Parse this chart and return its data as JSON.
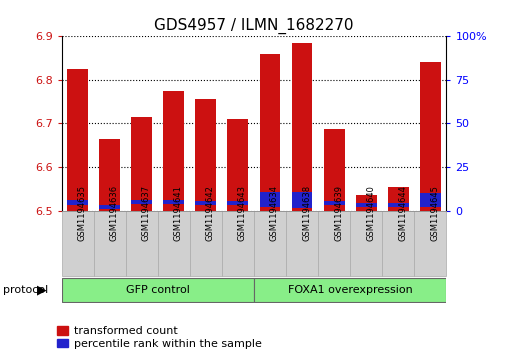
{
  "title": "GDS4957 / ILMN_1682270",
  "samples": [
    "GSM1194635",
    "GSM1194636",
    "GSM1194637",
    "GSM1194641",
    "GSM1194642",
    "GSM1194643",
    "GSM1194634",
    "GSM1194638",
    "GSM1194639",
    "GSM1194640",
    "GSM1194644",
    "GSM1194645"
  ],
  "transformed_counts": [
    6.825,
    6.665,
    6.715,
    6.775,
    6.755,
    6.71,
    6.86,
    6.885,
    6.688,
    6.535,
    6.555,
    6.84
  ],
  "percentile_bottoms": [
    6.513,
    6.504,
    6.514,
    6.514,
    6.512,
    6.513,
    6.507,
    6.506,
    6.512,
    6.509,
    6.509,
    6.507
  ],
  "percentile_heights": [
    0.011,
    0.009,
    0.011,
    0.011,
    0.01,
    0.01,
    0.036,
    0.036,
    0.011,
    0.009,
    0.009,
    0.034
  ],
  "ymin": 6.5,
  "ymax": 6.9,
  "yticks": [
    6.5,
    6.6,
    6.7,
    6.8,
    6.9
  ],
  "y2min": 0,
  "y2max": 100,
  "y2ticks": [
    0,
    25,
    50,
    75,
    100
  ],
  "y2ticklabels": [
    "0",
    "25",
    "50",
    "75",
    "100%"
  ],
  "bar_color_red": "#cc1111",
  "bar_color_blue": "#2222cc",
  "bar_width": 0.65,
  "group1_label": "GFP control",
  "group2_label": "FOXA1 overexpression",
  "group1_count": 6,
  "group2_count": 6,
  "group_color": "#88ee88",
  "sample_box_color": "#d0d0d0",
  "protocol_label": "protocol",
  "legend_red": "transformed count",
  "legend_blue": "percentile rank within the sample",
  "plot_bg": "#ffffff",
  "title_fontsize": 11,
  "tick_fontsize": 8,
  "sample_fontsize": 6,
  "legend_fontsize": 8
}
